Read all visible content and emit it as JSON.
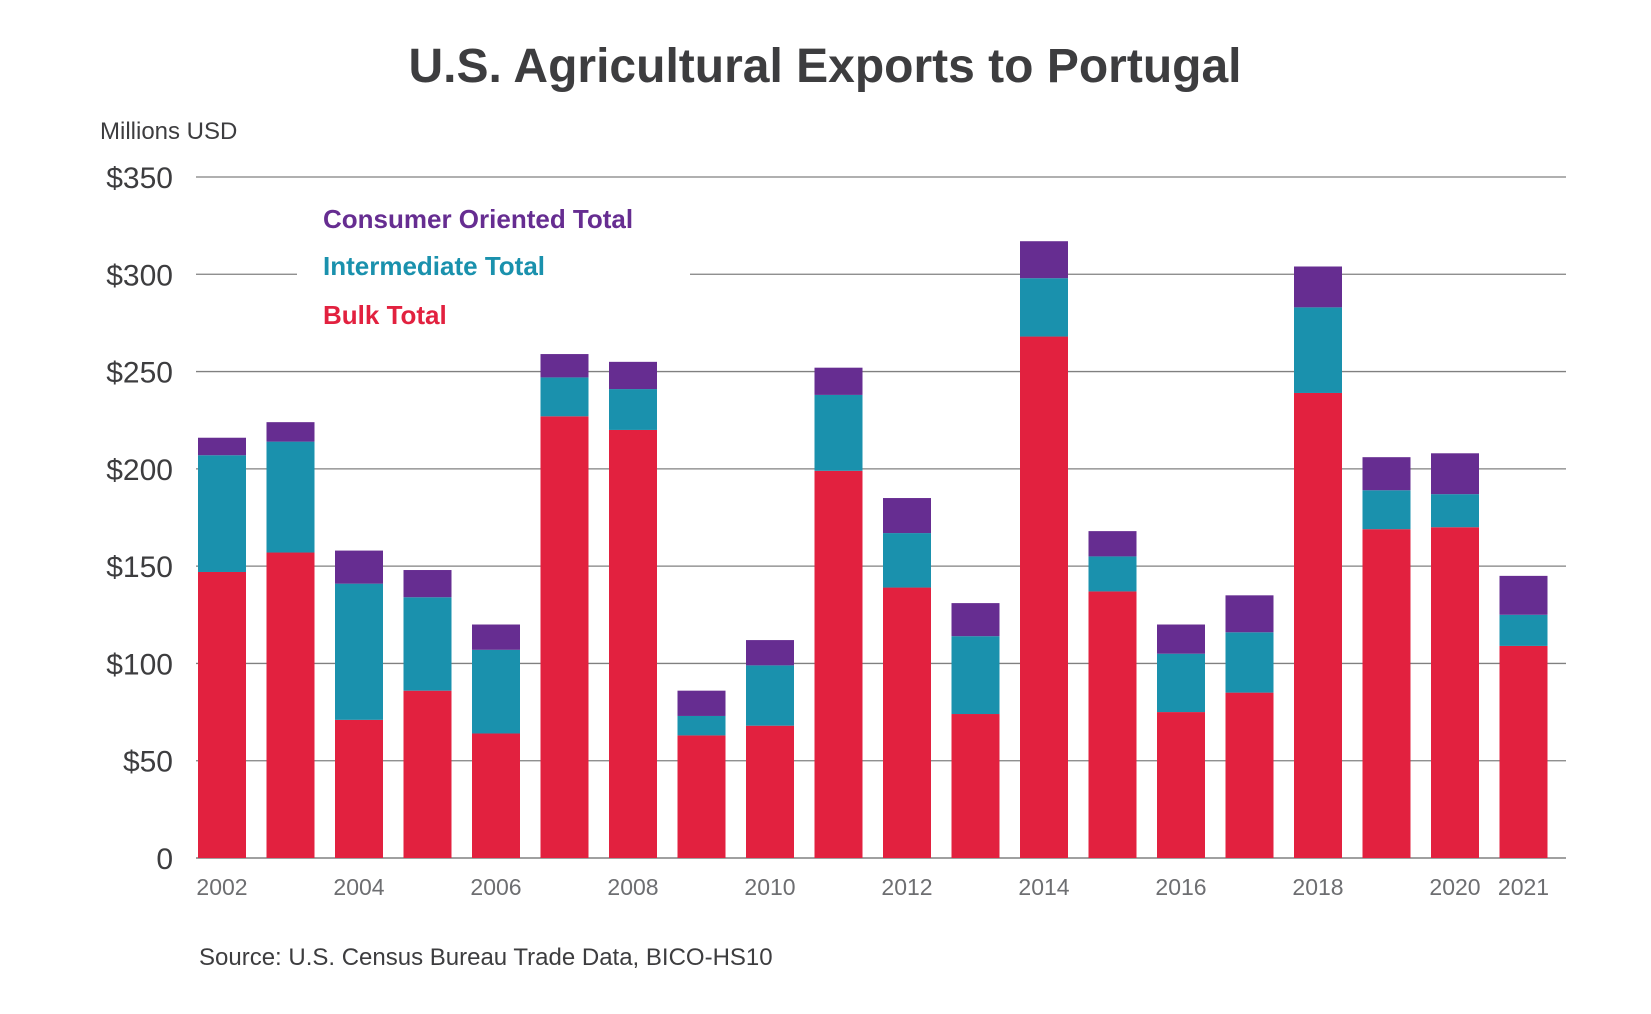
{
  "chart_data": {
    "type": "bar",
    "stacked": true,
    "title": "U.S. Agricultural Exports to Portugal",
    "unit_label": "Millions USD",
    "source": "Source: U.S. Census Bureau Trade Data, BICO-HS10",
    "xlabel": "",
    "ylabel": "",
    "ylim": [
      0,
      350
    ],
    "grid": true,
    "legend_position": "top-left",
    "y_ticks": [
      {
        "value": 0,
        "label": "0"
      },
      {
        "value": 50,
        "label": "$50"
      },
      {
        "value": 100,
        "label": "$100"
      },
      {
        "value": 150,
        "label": "$150"
      },
      {
        "value": 200,
        "label": "$200"
      },
      {
        "value": 250,
        "label": "$250"
      },
      {
        "value": 300,
        "label": "$300"
      },
      {
        "value": 350,
        "label": "$350"
      }
    ],
    "categories": [
      "2002",
      "2003",
      "2004",
      "2005",
      "2006",
      "2007",
      "2008",
      "2009",
      "2010",
      "2011",
      "2012",
      "2013",
      "2014",
      "2015",
      "2016",
      "2017",
      "2018",
      "2019",
      "2020",
      "2021"
    ],
    "x_tick_labels": [
      "2002",
      "",
      "2004",
      "",
      "2006",
      "",
      "2008",
      "",
      "2010",
      "",
      "2012",
      "",
      "2014",
      "",
      "2016",
      "",
      "2018",
      "",
      "2020",
      "2021"
    ],
    "series": [
      {
        "name": "Bulk Total",
        "color": "#e2213f",
        "values": [
          147,
          157,
          71,
          86,
          64,
          227,
          220,
          63,
          68,
          199,
          139,
          74,
          268,
          137,
          75,
          85,
          239,
          169,
          170,
          109
        ]
      },
      {
        "name": "Intermediate Total",
        "color": "#1a91ad",
        "values": [
          60,
          57,
          70,
          48,
          43,
          20,
          21,
          10,
          31,
          39,
          28,
          40,
          30,
          18,
          30,
          31,
          44,
          20,
          17,
          16
        ]
      },
      {
        "name": "Consumer Oriented Total",
        "color": "#662d91",
        "values": [
          9,
          10,
          17,
          14,
          13,
          12,
          14,
          13,
          13,
          14,
          18,
          17,
          19,
          13,
          15,
          19,
          21,
          17,
          21,
          20
        ]
      }
    ],
    "legend_order": [
      "Consumer Oriented Total",
      "Intermediate Total",
      "Bulk Total"
    ]
  }
}
